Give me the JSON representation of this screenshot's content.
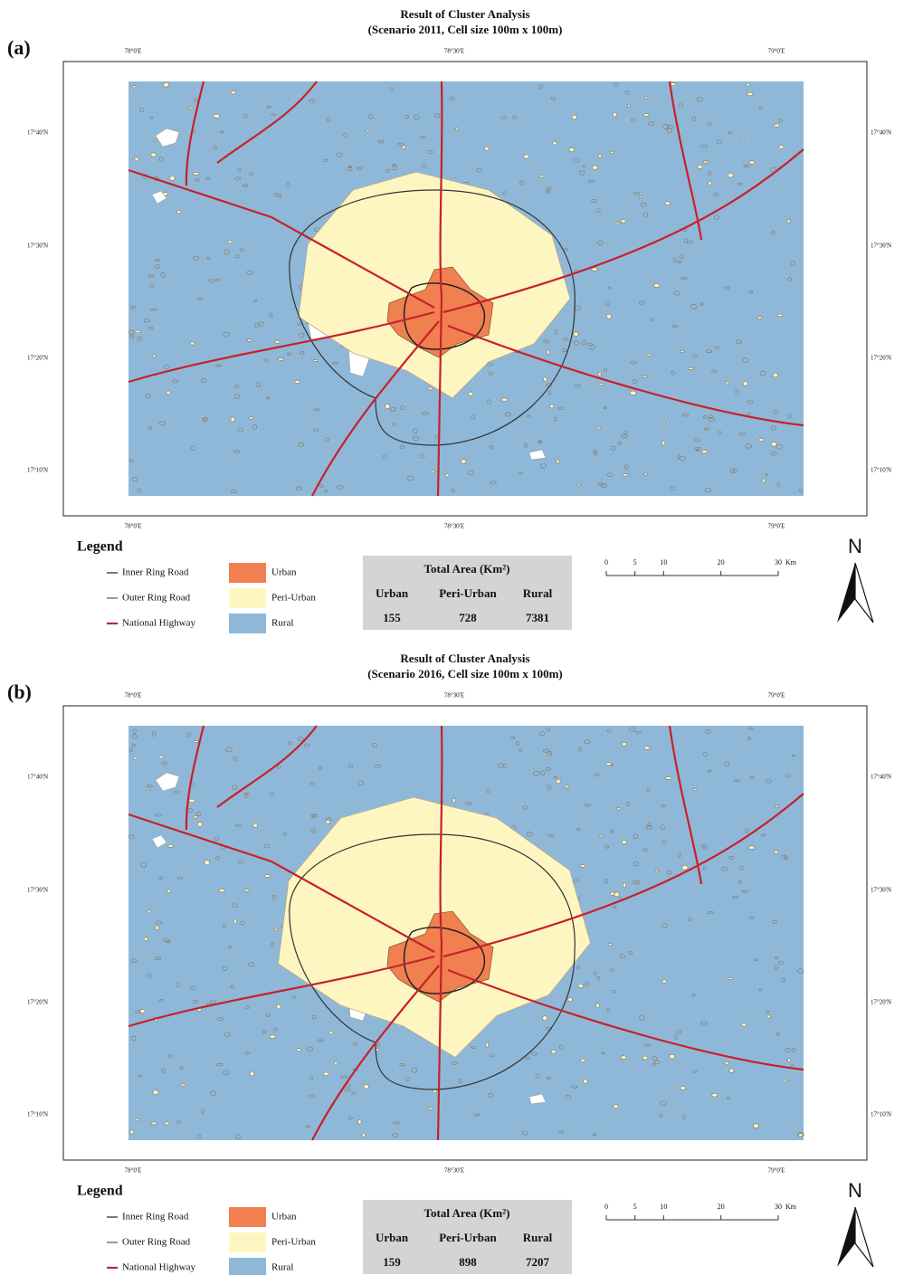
{
  "panels": [
    {
      "label": "(a)",
      "title": [
        "Result of Cluster Analysis",
        "(Scenario 2011, Cell size 100m x 100m)"
      ],
      "longitudes": [
        "78°0'E",
        "78°30'E",
        "79°0'E"
      ],
      "latitudes": [
        "17°40'N",
        "17°30'N",
        "17°20'N",
        "17°10'N"
      ],
      "legend": {
        "title": "Legend",
        "roads": [
          "Inner Ring Road",
          "Outer Ring Road",
          "National Highway"
        ],
        "classes": [
          "Urban",
          "Peri-Urban",
          "Rural"
        ]
      },
      "total_area": {
        "title": "Total Area (Km²)",
        "headers": [
          "Urban",
          "Peri-Urban",
          "Rural"
        ],
        "values": [
          155,
          728,
          7381
        ]
      },
      "scale": {
        "ticks": [
          0,
          5,
          10,
          20,
          30
        ],
        "unit": "Km"
      },
      "north": "N"
    },
    {
      "label": "(b)",
      "title": [
        "Result of Cluster Analysis",
        "(Scenario 2016, Cell size 100m x 100m)"
      ],
      "longitudes": [
        "78°0'E",
        "78°30'E",
        "79°0'E"
      ],
      "latitudes": [
        "17°40'N",
        "17°30'N",
        "17°20'N",
        "17°10'N"
      ],
      "legend": {
        "title": "Legend",
        "roads": [
          "Inner Ring Road",
          "Outer Ring Road",
          "National Highway"
        ],
        "classes": [
          "Urban",
          "Peri-Urban",
          "Rural"
        ]
      },
      "total_area": {
        "title": "Total Area (Km²)",
        "headers": [
          "Urban",
          "Peri-Urban",
          "Rural"
        ],
        "values": [
          159,
          898,
          7207
        ]
      },
      "scale": {
        "ticks": [
          0,
          5,
          10,
          20,
          30
        ],
        "unit": "Km"
      },
      "north": "N"
    }
  ]
}
